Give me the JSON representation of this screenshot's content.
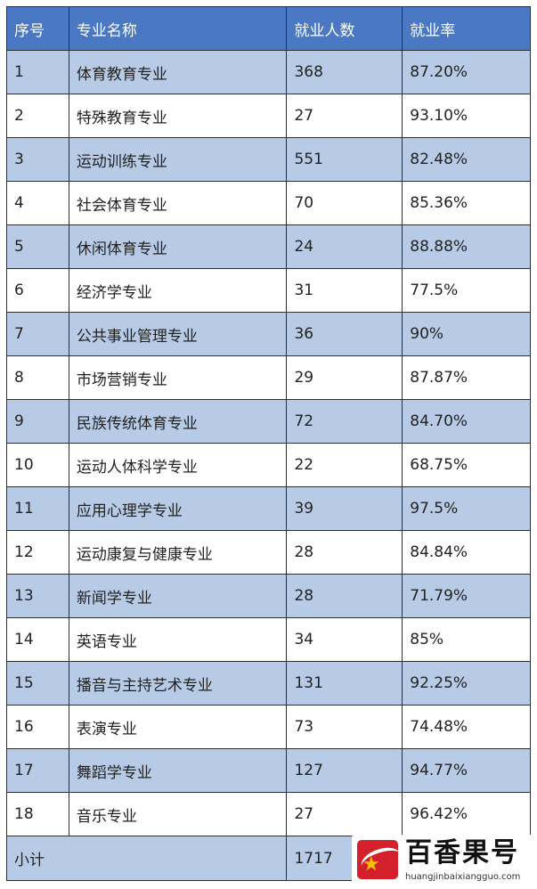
{
  "table": {
    "headers": [
      "序号",
      "专业名称",
      "就业人数",
      "就业率"
    ],
    "rows": [
      {
        "no": "1",
        "major": "体育教育专业",
        "count": "368",
        "rate": "87.20%"
      },
      {
        "no": "2",
        "major": "特殊教育专业",
        "count": "27",
        "rate": "93.10%"
      },
      {
        "no": "3",
        "major": "运动训练专业",
        "count": "551",
        "rate": "82.48%"
      },
      {
        "no": "4",
        "major": "社会体育专业",
        "count": "70",
        "rate": "85.36%"
      },
      {
        "no": "5",
        "major": "休闲体育专业",
        "count": "24",
        "rate": "88.88%"
      },
      {
        "no": "6",
        "major": "经济学专业",
        "count": "31",
        "rate": "77.5%"
      },
      {
        "no": "7",
        "major": "公共事业管理专业",
        "count": "36",
        "rate": "90%"
      },
      {
        "no": "8",
        "major": "市场营销专业",
        "count": "29",
        "rate": "87.87%"
      },
      {
        "no": "9",
        "major": "民族传统体育专业",
        "count": "72",
        "rate": "84.70%"
      },
      {
        "no": "10",
        "major": "运动人体科学专业",
        "count": "22",
        "rate": "68.75%"
      },
      {
        "no": "11",
        "major": "应用心理学专业",
        "count": "39",
        "rate": "97.5%"
      },
      {
        "no": "12",
        "major": "运动康复与健康专业",
        "count": "28",
        "rate": "84.84%"
      },
      {
        "no": "13",
        "major": "新闻学专业",
        "count": "28",
        "rate": "71.79%"
      },
      {
        "no": "14",
        "major": "英语专业",
        "count": "34",
        "rate": "85%"
      },
      {
        "no": "15",
        "major": "播音与主持艺术专业",
        "count": "131",
        "rate": "92.25%"
      },
      {
        "no": "16",
        "major": "表演专业",
        "count": "73",
        "rate": "74.48%"
      },
      {
        "no": "17",
        "major": "舞蹈学专业",
        "count": "127",
        "rate": "94.77%"
      },
      {
        "no": "18",
        "major": "音乐专业",
        "count": "27",
        "rate": "96.42%"
      }
    ],
    "total": {
      "label": "小计",
      "count": "1717"
    }
  },
  "watermark": {
    "title": "百香果号",
    "url": "huangjinbaixiangguo.com",
    "icon": "red-swoosh-star-logo"
  },
  "colors": {
    "header_bg": "#4a78c2",
    "odd_row_bg": "#b8cbe6",
    "even_row_bg": "#ffffff",
    "border": "#2f2f2f",
    "logo_red": "#d4202a",
    "logo_star": "#f6c200"
  }
}
